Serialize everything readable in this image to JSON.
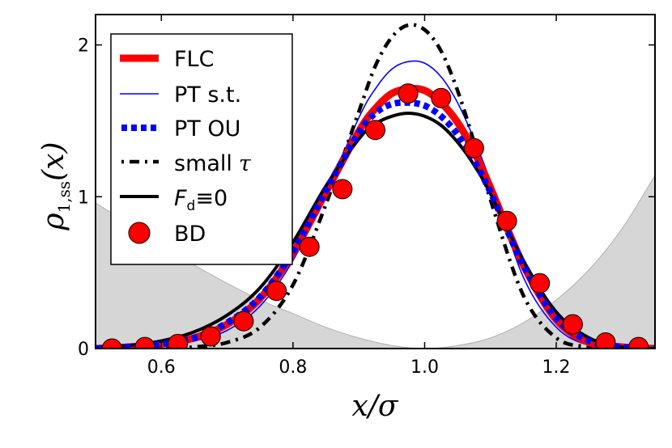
{
  "chart_data": {
    "type": "line",
    "xlabel": "x/σ",
    "ylabel_main": "ρ",
    "ylabel_sub": "1,ss",
    "ylabel_arg": "(x)",
    "xlim": [
      0.5,
      1.35
    ],
    "ylim": [
      0,
      2.2
    ],
    "xticks": [
      0.6,
      0.8,
      1.0,
      1.2
    ],
    "xtick_labels": [
      "0.6",
      "0.8",
      "1.0",
      "1.2"
    ],
    "yticks": [
      0,
      1,
      2
    ],
    "ytick_labels": [
      "0",
      "1",
      "2"
    ],
    "legend_position": "top-left",
    "background_potential": {
      "description": "gray shaded region",
      "x": [
        0.5,
        0.55,
        0.6,
        0.65,
        0.7,
        0.75,
        0.8,
        0.85,
        0.9,
        0.95,
        1.0,
        1.05,
        1.1,
        1.15,
        1.2,
        1.25,
        1.3,
        1.35
      ],
      "y": [
        0.96,
        0.82,
        0.68,
        0.55,
        0.43,
        0.32,
        0.23,
        0.14,
        0.07,
        0.02,
        0.0,
        0.02,
        0.07,
        0.17,
        0.32,
        0.52,
        0.79,
        1.14
      ],
      "color": "#d6d6d6"
    },
    "series": [
      {
        "name": "FLC",
        "color": "#ff0000",
        "style": "thick",
        "x": [
          0.5,
          0.55,
          0.6,
          0.65,
          0.7,
          0.75,
          0.8,
          0.85,
          0.9,
          0.925,
          0.95,
          0.975,
          1.0,
          1.025,
          1.05,
          1.075,
          1.1,
          1.15,
          1.2,
          1.25,
          1.3,
          1.35
        ],
        "y": [
          0.0,
          0.01,
          0.03,
          0.07,
          0.16,
          0.33,
          0.63,
          1.03,
          1.43,
          1.58,
          1.68,
          1.71,
          1.7,
          1.62,
          1.49,
          1.3,
          1.06,
          0.55,
          0.19,
          0.04,
          0.01,
          0.0
        ]
      },
      {
        "name": "PT s.t.",
        "color": "#0000ff",
        "style": "thin",
        "x": [
          0.5,
          0.55,
          0.6,
          0.65,
          0.7,
          0.75,
          0.8,
          0.85,
          0.9,
          0.925,
          0.95,
          0.975,
          1.0,
          1.025,
          1.05,
          1.075,
          1.1,
          1.15,
          1.2,
          1.25,
          1.3,
          1.35
        ],
        "y": [
          0.0,
          0.0,
          0.02,
          0.05,
          0.12,
          0.28,
          0.58,
          1.02,
          1.52,
          1.71,
          1.84,
          1.89,
          1.88,
          1.79,
          1.62,
          1.38,
          1.1,
          0.47,
          0.14,
          0.02,
          0.0,
          0.0
        ]
      },
      {
        "name": "PT OU",
        "color": "#0000ff",
        "style": "dotted",
        "x": [
          0.5,
          0.55,
          0.6,
          0.65,
          0.7,
          0.75,
          0.8,
          0.85,
          0.9,
          0.925,
          0.95,
          0.975,
          1.0,
          1.025,
          1.05,
          1.075,
          1.1,
          1.15,
          1.2,
          1.25,
          1.3,
          1.35
        ],
        "y": [
          0.0,
          0.01,
          0.03,
          0.07,
          0.17,
          0.34,
          0.64,
          1.04,
          1.42,
          1.55,
          1.61,
          1.62,
          1.6,
          1.53,
          1.41,
          1.24,
          1.03,
          0.55,
          0.2,
          0.05,
          0.01,
          0.0
        ]
      },
      {
        "name": "small τ",
        "color": "#000000",
        "style": "dashdot",
        "x": [
          0.5,
          0.55,
          0.6,
          0.65,
          0.7,
          0.75,
          0.8,
          0.85,
          0.9,
          0.925,
          0.95,
          0.975,
          1.0,
          1.025,
          1.05,
          1.075,
          1.1,
          1.15,
          1.2,
          1.25,
          1.3,
          1.35
        ],
        "y": [
          0.0,
          0.0,
          0.0,
          0.01,
          0.04,
          0.14,
          0.42,
          0.95,
          1.56,
          1.86,
          2.05,
          2.13,
          2.1,
          1.96,
          1.7,
          1.36,
          0.98,
          0.35,
          0.07,
          0.01,
          0.0,
          0.0
        ]
      },
      {
        "name": "Fd≡0",
        "color": "#000000",
        "style": "solid",
        "x": [
          0.5,
          0.55,
          0.6,
          0.65,
          0.7,
          0.75,
          0.8,
          0.85,
          0.9,
          0.925,
          0.95,
          0.975,
          1.0,
          1.025,
          1.05,
          1.075,
          1.1,
          1.15,
          1.2,
          1.25,
          1.3,
          1.35
        ],
        "y": [
          0.01,
          0.02,
          0.05,
          0.11,
          0.22,
          0.4,
          0.7,
          1.07,
          1.38,
          1.48,
          1.53,
          1.55,
          1.53,
          1.47,
          1.36,
          1.21,
          1.02,
          0.58,
          0.24,
          0.07,
          0.01,
          0.0
        ]
      },
      {
        "name": "BD",
        "color": "#ff0000",
        "style": "markers",
        "x": [
          0.525,
          0.575,
          0.625,
          0.675,
          0.725,
          0.775,
          0.825,
          0.875,
          0.925,
          0.975,
          1.025,
          1.075,
          1.125,
          1.175,
          1.225,
          1.275,
          1.325
        ],
        "y": [
          0.0,
          0.01,
          0.03,
          0.08,
          0.18,
          0.38,
          0.67,
          1.05,
          1.44,
          1.68,
          1.65,
          1.32,
          0.84,
          0.43,
          0.16,
          0.04,
          0.01
        ]
      }
    ],
    "legend": {
      "entries": [
        {
          "label": "FLC"
        },
        {
          "label": "PT s.t."
        },
        {
          "label": "PT OU"
        },
        {
          "label": "small",
          "label_math": "τ"
        },
        {
          "label_math": "F",
          "label_sub": "d",
          "label_tail": "≡0"
        },
        {
          "label": "BD"
        }
      ]
    }
  }
}
